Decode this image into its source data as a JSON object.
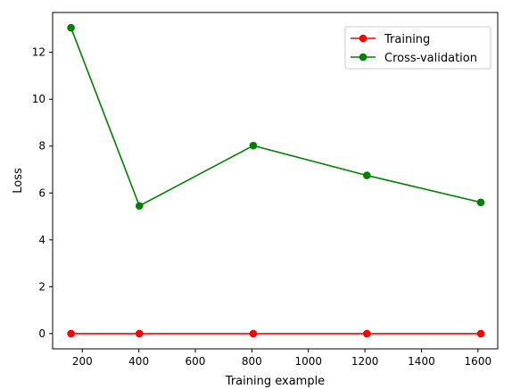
{
  "chart_data": {
    "type": "line",
    "title": "",
    "xlabel": "Training example",
    "ylabel": "Loss",
    "xlim": [
      95,
      1670
    ],
    "ylim": [
      -0.65,
      13.7
    ],
    "x_ticks": [
      200,
      400,
      600,
      800,
      1000,
      1200,
      1400,
      1600
    ],
    "y_ticks": [
      0,
      2,
      4,
      6,
      8,
      10,
      12
    ],
    "grid": false,
    "legend_position": "top-right",
    "series": [
      {
        "name": "Training",
        "color": "#ff0000",
        "marker": "circle",
        "x": [
          160,
          402,
          805,
          1207,
          1610
        ],
        "y": [
          0.0,
          0.0,
          0.0,
          0.0,
          0.0
        ]
      },
      {
        "name": "Cross-validation",
        "color": "#008000",
        "marker": "circle",
        "x": [
          160,
          402,
          805,
          1207,
          1610
        ],
        "y": [
          13.05,
          5.45,
          8.02,
          6.75,
          5.6
        ]
      }
    ]
  }
}
